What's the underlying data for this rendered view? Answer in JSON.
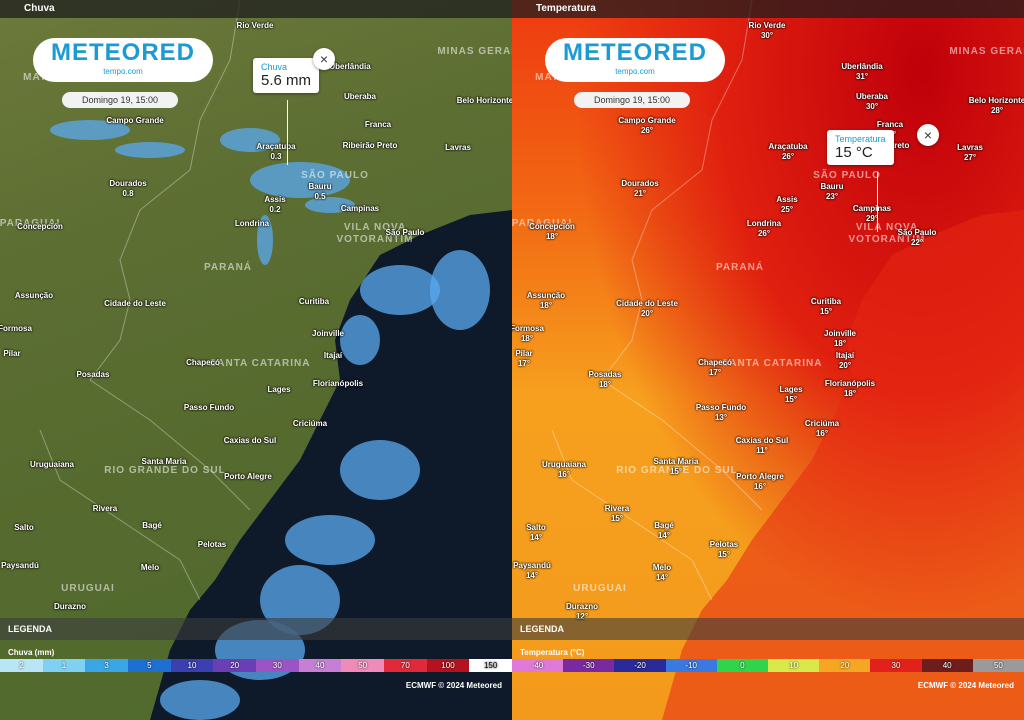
{
  "panels": [
    {
      "layer": "Chuva",
      "logo": "METEORED",
      "logo_sub": "tempo.com",
      "date": "Domingo 19, 15:00",
      "popup": {
        "label": "Chuva",
        "value": "5.6 mm"
      },
      "regions": [
        "MATO GROSSO DO SUL",
        "MINAS GERAIS",
        "SÃO PAULO",
        "PARAGUAI",
        "VILA NOVA",
        "VOTORANTIM",
        "PARANÁ",
        "SANTA CATARINA",
        "RIO GRANDE DO SUL",
        "URUGUAI"
      ],
      "cities": [
        {
          "name": "Rio Verde"
        },
        {
          "name": "Uberlândia"
        },
        {
          "name": "Uberaba"
        },
        {
          "name": "Belo Horizonte"
        },
        {
          "name": "Campo Grande"
        },
        {
          "name": "Franca"
        },
        {
          "name": "Ribeirão Preto"
        },
        {
          "name": "Lavras"
        },
        {
          "name": "Araçatuba",
          "value": "0.3"
        },
        {
          "name": "Dourados",
          "value": "0.8"
        },
        {
          "name": "Bauru",
          "value": "0.5"
        },
        {
          "name": "Assis",
          "value": "0.2"
        },
        {
          "name": "Campinas"
        },
        {
          "name": "Londrina"
        },
        {
          "name": "Concepción"
        },
        {
          "name": "São Paulo"
        },
        {
          "name": "Assunção"
        },
        {
          "name": "Cidade do Leste"
        },
        {
          "name": "Curitiba"
        },
        {
          "name": "Formosa"
        },
        {
          "name": "Joinville"
        },
        {
          "name": "Pilar"
        },
        {
          "name": "Itajaí"
        },
        {
          "name": "Chapecó"
        },
        {
          "name": "Posadas"
        },
        {
          "name": "Florianópolis"
        },
        {
          "name": "Lages"
        },
        {
          "name": "Passo Fundo"
        },
        {
          "name": "Criciúma"
        },
        {
          "name": "Caxias do Sul"
        },
        {
          "name": "Uruguaiana"
        },
        {
          "name": "Santa Maria"
        },
        {
          "name": "Porto Alegre"
        },
        {
          "name": "Rivera"
        },
        {
          "name": "Bagé"
        },
        {
          "name": "Salto"
        },
        {
          "name": "Pelotas"
        },
        {
          "name": "Paysandú"
        },
        {
          "name": "Melo"
        },
        {
          "name": "Durazno"
        }
      ],
      "legend": {
        "title": "LEGENDA",
        "scale": "Chuva (mm)",
        "items": [
          {
            "label": "2",
            "color": "#b9e6f7"
          },
          {
            "label": "1",
            "color": "#7fd0f2"
          },
          {
            "label": "3",
            "color": "#3aa6e6"
          },
          {
            "label": "5",
            "color": "#1d6fd1"
          },
          {
            "label": "10",
            "color": "#3b3fb0"
          },
          {
            "label": "20",
            "color": "#6a3fb5"
          },
          {
            "label": "30",
            "color": "#9a54c4"
          },
          {
            "label": "40",
            "color": "#c77fd6"
          },
          {
            "label": "50",
            "color": "#f08ab8"
          },
          {
            "label": "70",
            "color": "#e02a3a"
          },
          {
            "label": "100",
            "color": "#b4121e"
          },
          {
            "label": "150",
            "color": "#ffffff"
          }
        ]
      },
      "credit": "ECMWF © 2024 Meteored"
    },
    {
      "layer": "Temperatura",
      "logo": "METEORED",
      "logo_sub": "tempo.com",
      "date": "Domingo 19, 15:00",
      "popup": {
        "label": "Temperatura",
        "value": "15 °C"
      },
      "regions": [
        "MATO GROSSO DO SUL",
        "MINAS GERAIS",
        "SÃO PAULO",
        "PARAGUAI",
        "VILA NOVA",
        "VOTORANTIM",
        "PARANÁ",
        "SANTA CATARINA",
        "RIO GRANDE DO SUL",
        "URUGUAI"
      ],
      "cities": [
        {
          "name": "Rio Verde",
          "value": "30°"
        },
        {
          "name": "Uberlândia",
          "value": "31°"
        },
        {
          "name": "Uberaba",
          "value": "30°"
        },
        {
          "name": "Belo Horizonte",
          "value": "28°"
        },
        {
          "name": "Campo Grande",
          "value": "26°"
        },
        {
          "name": "Franca",
          "value": "29°"
        },
        {
          "name": "Ribeirão Preto",
          "value": "30°"
        },
        {
          "name": "Lavras",
          "value": "27°"
        },
        {
          "name": "Araçatuba",
          "value": "26°"
        },
        {
          "name": "Dourados",
          "value": "21°"
        },
        {
          "name": "Bauru",
          "value": "23°"
        },
        {
          "name": "Assis",
          "value": "25°"
        },
        {
          "name": "Campinas",
          "value": "29°"
        },
        {
          "name": "Londrina",
          "value": "26°"
        },
        {
          "name": "Concepción",
          "value": "18°"
        },
        {
          "name": "São Paulo",
          "value": "22°"
        },
        {
          "name": "Assunção",
          "value": "18°"
        },
        {
          "name": "Cidade do Leste",
          "value": "20°"
        },
        {
          "name": "Curitiba",
          "value": "15°"
        },
        {
          "name": "Formosa",
          "value": "18°"
        },
        {
          "name": "Joinville",
          "value": "18°"
        },
        {
          "name": "Pilar",
          "value": "17°"
        },
        {
          "name": "Itajaí",
          "value": "20°"
        },
        {
          "name": "Chapecó",
          "value": "17°"
        },
        {
          "name": "Posadas",
          "value": "18°"
        },
        {
          "name": "Florianópolis",
          "value": "18°"
        },
        {
          "name": "Lages",
          "value": "15°"
        },
        {
          "name": "Passo Fundo",
          "value": "13°"
        },
        {
          "name": "Criciúma",
          "value": "16°"
        },
        {
          "name": "Caxias do Sul",
          "value": "11°"
        },
        {
          "name": "Uruguaiana",
          "value": "16°"
        },
        {
          "name": "Santa Maria",
          "value": "15°"
        },
        {
          "name": "Porto Alegre",
          "value": "16°"
        },
        {
          "name": "Rivera",
          "value": "15°"
        },
        {
          "name": "Bagé",
          "value": "14°"
        },
        {
          "name": "Salto",
          "value": "14°"
        },
        {
          "name": "Pelotas",
          "value": "15°"
        },
        {
          "name": "Paysandú",
          "value": "14°"
        },
        {
          "name": "Melo",
          "value": "14°"
        },
        {
          "name": "Durazno",
          "value": "12°"
        }
      ],
      "legend": {
        "title": "LEGENDA",
        "scale": "Temperatura (°C)",
        "items": [
          {
            "label": "-40",
            "color": "#e07ad8"
          },
          {
            "label": "-30",
            "color": "#7a2aa0"
          },
          {
            "label": "-20",
            "color": "#2a2a9a"
          },
          {
            "label": "-10",
            "color": "#3a7ae0"
          },
          {
            "label": "0",
            "color": "#2fd44a"
          },
          {
            "label": "10",
            "color": "#d9e84a"
          },
          {
            "label": "20",
            "color": "#f5a623"
          },
          {
            "label": "30",
            "color": "#e2211c"
          },
          {
            "label": "40",
            "color": "#6e1d1d"
          },
          {
            "label": "50",
            "color": "#9a9a9a"
          }
        ]
      },
      "credit": "ECMWF © 2024 Meteored"
    }
  ]
}
